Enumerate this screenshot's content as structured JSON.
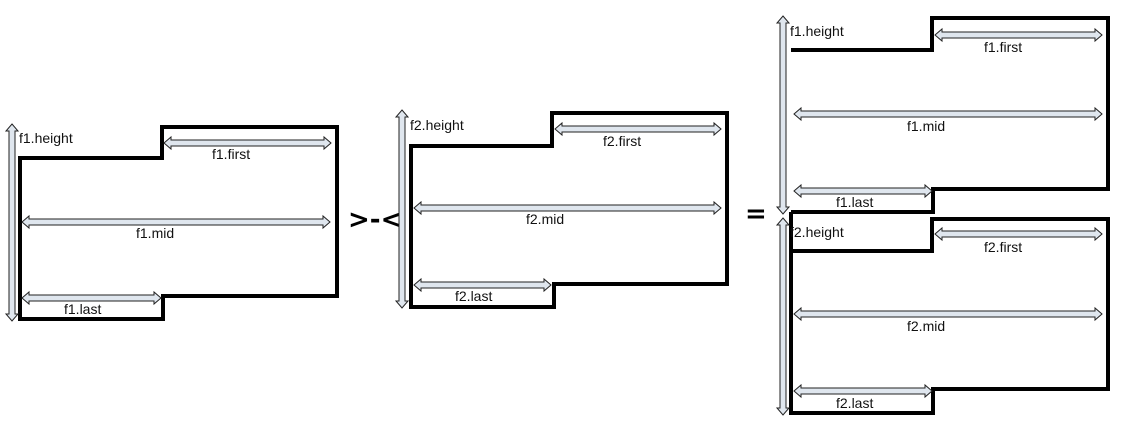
{
  "operator": ">-<",
  "equals": "=",
  "colors": {
    "outline": "#000000",
    "arrow_fill": "#dfe6ee"
  },
  "frames": {
    "left_f1": {
      "height": "f1.height",
      "first": "f1.first",
      "mid": "f1.mid",
      "last": "f1.last"
    },
    "middle_f2": {
      "height": "f2.height",
      "first": "f2.first",
      "mid": "f2.mid",
      "last": "f2.last"
    },
    "result_f1": {
      "height": "f1.height",
      "first": "f1.first",
      "mid": "f1.mid",
      "last": "f1.last"
    },
    "result_f2": {
      "height": "f2.height",
      "first": "f2.first",
      "mid": "f2.mid",
      "last": "f2.last"
    }
  }
}
